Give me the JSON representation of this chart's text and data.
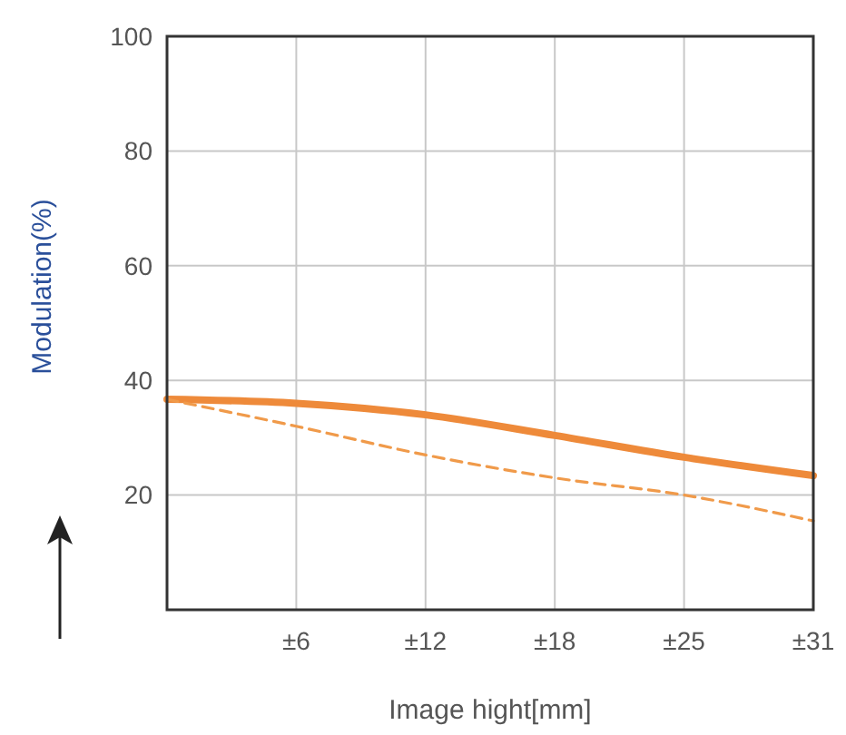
{
  "chart_data": {
    "type": "line",
    "xlabel": "Image hight[mm]",
    "ylabel": "Modulation(%)",
    "categories": [
      null,
      "±6",
      "±12",
      "±18",
      "±25",
      "±31"
    ],
    "series": [
      {
        "color": "#ee8a3a",
        "line_style": "solid",
        "values": [
          36.7,
          36,
          34,
          30.4,
          26.6,
          23.4
        ]
      },
      {
        "color": "#f09a4a",
        "line_style": "dashed",
        "values": [
          36.7,
          32,
          27,
          23,
          20,
          15.5
        ]
      }
    ],
    "ylim": [
      0,
      100
    ],
    "yticks": [
      20,
      40,
      60,
      80,
      100
    ],
    "grid": true,
    "marker": "none"
  }
}
